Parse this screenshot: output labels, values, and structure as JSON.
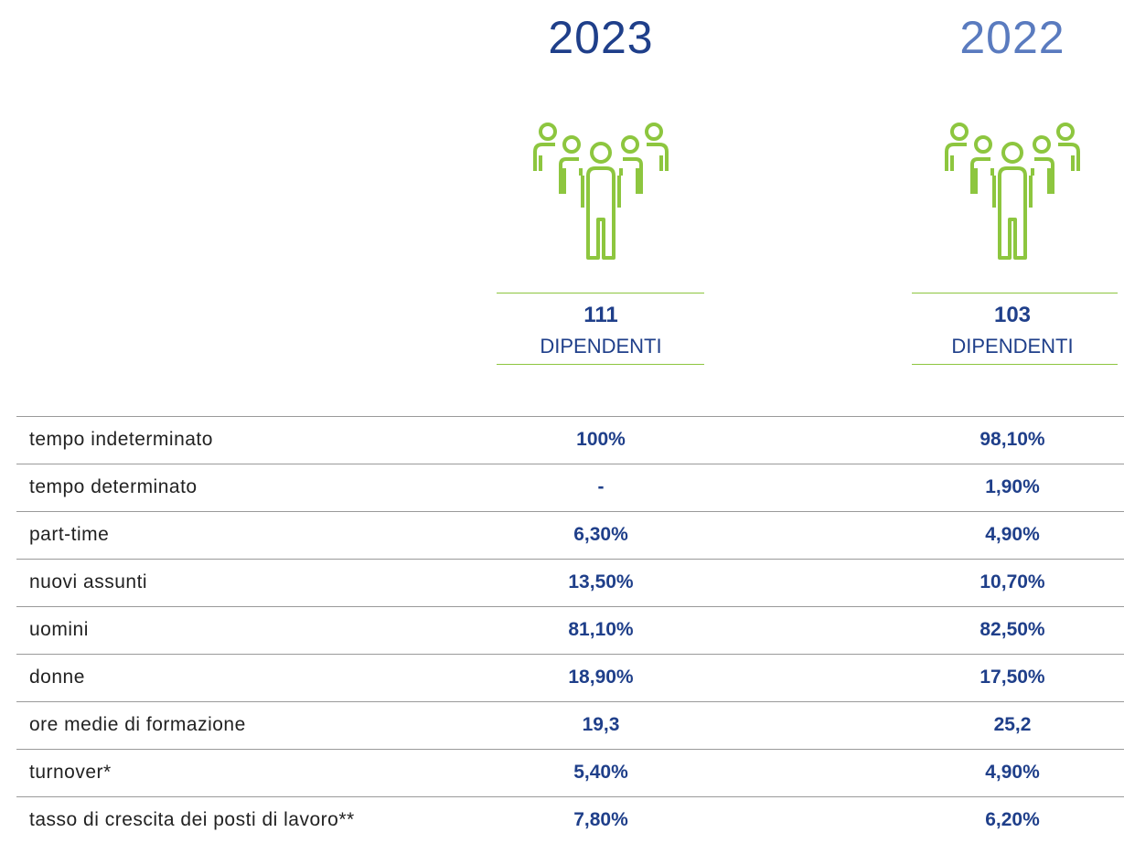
{
  "columns": [
    {
      "year": "2023",
      "count": "111",
      "unit": "DIPENDENTI"
    },
    {
      "year": "2022",
      "count": "103",
      "unit": "DIPENDENTI"
    }
  ],
  "rows": [
    {
      "label": "tempo indeterminato",
      "values": [
        "100%",
        "98,10%"
      ]
    },
    {
      "label": "tempo determinato",
      "values": [
        "-",
        "1,90%"
      ]
    },
    {
      "label": "part-time",
      "values": [
        "6,30%",
        "4,90%"
      ]
    },
    {
      "label": "nuovi assunti",
      "values": [
        "13,50%",
        "10,70%"
      ]
    },
    {
      "label": "uomini",
      "values": [
        "81,10%",
        "82,50%"
      ]
    },
    {
      "label": "donne",
      "values": [
        "18,90%",
        "17,50%"
      ]
    },
    {
      "label": "ore medie di formazione",
      "values": [
        "19,3",
        "25,2"
      ]
    },
    {
      "label": "turnover*",
      "values": [
        "5,40%",
        "4,90%"
      ]
    },
    {
      "label": "tasso di crescita dei posti di lavoro**",
      "values": [
        "7,80%",
        "6,20%"
      ]
    }
  ]
}
